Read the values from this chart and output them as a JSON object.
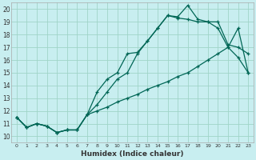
{
  "xlabel": "Humidex (Indice chaleur)",
  "background_color": "#c8eef0",
  "grid_color": "#a0d4c8",
  "line_color": "#006655",
  "xlim": [
    -0.5,
    23.5
  ],
  "ylim": [
    9.5,
    20.5
  ],
  "xticks": [
    0,
    1,
    2,
    3,
    4,
    5,
    6,
    7,
    8,
    9,
    10,
    11,
    12,
    13,
    14,
    15,
    16,
    17,
    18,
    19,
    20,
    21,
    22,
    23
  ],
  "yticks": [
    10,
    11,
    12,
    13,
    14,
    15,
    16,
    17,
    18,
    19,
    20
  ],
  "line1_x": [
    0,
    1,
    2,
    3,
    4,
    5,
    6,
    7,
    8,
    9,
    10,
    11,
    12,
    13,
    14,
    15,
    16,
    17,
    18,
    19,
    20,
    21,
    22,
    23
  ],
  "line1_y": [
    11.5,
    10.7,
    11.0,
    10.8,
    10.3,
    10.5,
    10.5,
    11.7,
    13.5,
    14.5,
    15.0,
    16.5,
    16.6,
    17.5,
    18.5,
    19.5,
    19.4,
    20.3,
    19.2,
    19.0,
    19.0,
    17.2,
    17.0,
    16.5
  ],
  "line2_x": [
    0,
    1,
    2,
    3,
    4,
    5,
    6,
    7,
    8,
    9,
    10,
    11,
    12,
    13,
    14,
    15,
    16,
    17,
    18,
    19,
    20,
    21,
    22,
    23
  ],
  "line2_y": [
    11.5,
    10.7,
    11.0,
    10.8,
    10.3,
    10.5,
    10.5,
    11.7,
    12.5,
    13.5,
    14.5,
    15.0,
    16.5,
    17.5,
    18.5,
    19.5,
    19.3,
    19.2,
    19.0,
    19.0,
    18.5,
    17.0,
    16.2,
    15.0
  ],
  "line3_x": [
    0,
    1,
    2,
    3,
    4,
    5,
    6,
    7,
    8,
    9,
    10,
    11,
    12,
    13,
    14,
    15,
    16,
    17,
    18,
    19,
    20,
    21,
    22,
    23
  ],
  "line3_y": [
    11.5,
    10.7,
    11.0,
    10.8,
    10.3,
    10.5,
    10.5,
    11.7,
    12.0,
    12.3,
    12.7,
    13.0,
    13.3,
    13.7,
    14.0,
    14.3,
    14.7,
    15.0,
    15.5,
    16.0,
    16.5,
    17.0,
    18.5,
    15.0
  ]
}
